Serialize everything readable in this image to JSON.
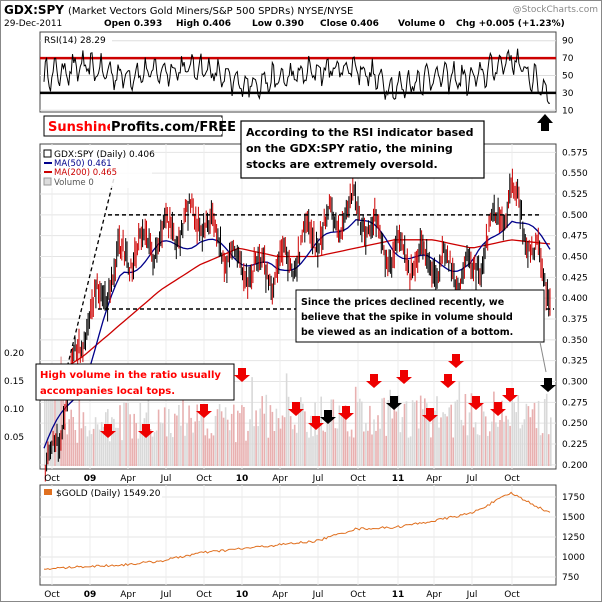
{
  "header": {
    "symbol": "GDX:SPY",
    "description": "(Market Vectors Gold Miners/S&P 500 SPDRs) NYSE/NYSE",
    "watermark": "@StockCharts.com",
    "date": "29-Dec-2011",
    "open": "Open 0.393",
    "high": "High 0.406",
    "low": "Low 0.390",
    "close": "Close 0.406",
    "volume": "Volume 0",
    "chg": "Chg +0.005 (+1.23%)",
    "chg_color": "#006400"
  },
  "rsi": {
    "label": "RSI(14) 28.29",
    "ticks": [
      "90",
      "70",
      "50",
      "30",
      "10"
    ],
    "upper_line": 70,
    "lower_line": 30,
    "line_color": "#cc0000"
  },
  "branding": {
    "part1": "Sunshine",
    "part2": "Profits.com/FREE",
    "color": "#ff0000"
  },
  "annotations": {
    "rsi_note": [
      "According to the RSI indicator based",
      "on the GDX:SPY ratio, the mining",
      "stocks are extremely oversold."
    ],
    "volume_note": [
      "High volume in the ratio usually",
      "accompanies local tops."
    ],
    "bottom_note": [
      "Since the prices declined recently, we",
      "believe that the spike in volume should",
      "be viewed as an indication of a bottom."
    ]
  },
  "legend": {
    "price": "GDX:SPY (Daily) 0.406",
    "ma50": "MA(50) 0.461",
    "ma200": "MA(200) 0.465",
    "volume": "Volume 0",
    "ma50_color": "#00008b",
    "ma200_color": "#cc0000"
  },
  "price_ticks": [
    "0.575",
    "0.550",
    "0.525",
    "0.500",
    "0.475",
    "0.450",
    "0.425",
    "0.400",
    "0.375",
    "0.350",
    "0.325",
    "0.300",
    "0.275",
    "0.250",
    "0.225",
    "0.200"
  ],
  "volume_ticks": [
    "0.20",
    "0.15",
    "0.10",
    "0.05"
  ],
  "x_labels": [
    "Oct",
    "09",
    "Apr",
    "Jul",
    "Oct",
    "10",
    "Apr",
    "Jul",
    "Oct",
    "11",
    "Apr",
    "Jul",
    "Oct"
  ],
  "gold": {
    "label": "$GOLD (Daily) 1549.20",
    "ticks": [
      "1750",
      "1500",
      "1250",
      "1000",
      "750"
    ],
    "color": "#e07020"
  },
  "chart_data": {
    "type": "line",
    "title": "GDX:SPY (Market Vectors Gold Miners/S&P 500 SPDRs) NYSE/NYSE",
    "x": [
      "2008-10",
      "2009-01",
      "2009-04",
      "2009-07",
      "2009-10",
      "2010-01",
      "2010-04",
      "2010-07",
      "2010-10",
      "2011-01",
      "2011-04",
      "2011-07",
      "2011-10",
      "2011-12"
    ],
    "series": [
      {
        "name": "GDX:SPY (Daily)",
        "values": [
          0.17,
          0.36,
          0.45,
          0.47,
          0.5,
          0.44,
          0.43,
          0.48,
          0.51,
          0.45,
          0.44,
          0.43,
          0.53,
          0.406
        ]
      },
      {
        "name": "MA(50)",
        "values": [
          0.22,
          0.3,
          0.43,
          0.46,
          0.47,
          0.45,
          0.43,
          0.46,
          0.5,
          0.46,
          0.44,
          0.44,
          0.5,
          0.461
        ]
      },
      {
        "name": "MA(200)",
        "values": [
          0.3,
          0.33,
          0.37,
          0.41,
          0.44,
          0.46,
          0.45,
          0.45,
          0.46,
          0.47,
          0.47,
          0.46,
          0.47,
          0.465
        ]
      },
      {
        "name": "$GOLD (Daily)",
        "values": [
          850,
          880,
          900,
          950,
          1050,
          1100,
          1150,
          1200,
          1350,
          1370,
          1450,
          1550,
          1800,
          1549.2
        ]
      },
      {
        "name": "RSI(14)",
        "values": [
          50,
          60,
          50,
          55,
          60,
          40,
          45,
          55,
          60,
          35,
          50,
          45,
          70,
          28.29
        ]
      }
    ],
    "ylim_price": [
      0.2,
      0.575
    ],
    "ylim_rsi": [
      10,
      90
    ],
    "ylim_gold": [
      750,
      1750
    ],
    "resistance": 0.5,
    "support": 0.387
  }
}
